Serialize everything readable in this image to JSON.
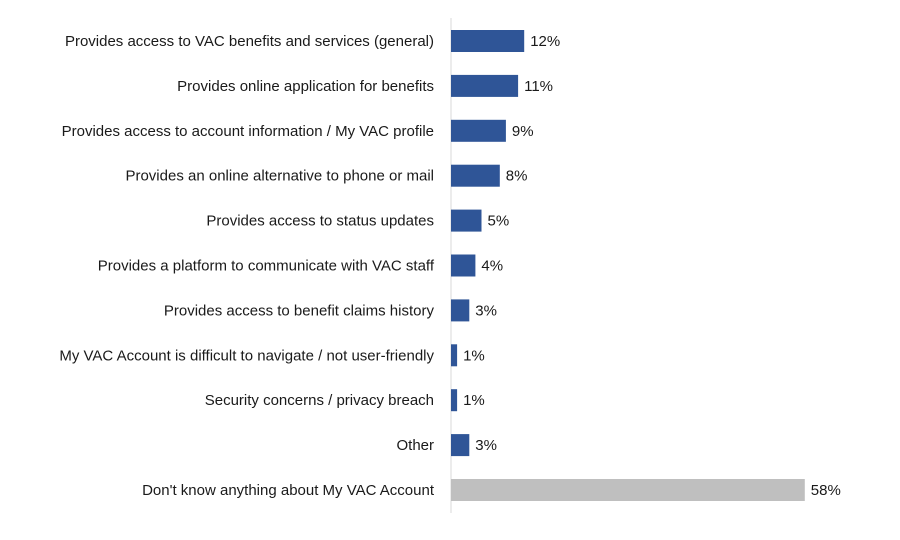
{
  "chart_data": {
    "type": "bar",
    "orientation": "horizontal",
    "categories": [
      "Provides access to VAC benefits and services (general)",
      "Provides online application for benefits",
      "Provides access to account information / My VAC profile",
      "Provides an online alternative to phone or mail",
      "Provides access to status updates",
      "Provides a platform to communicate with VAC staff",
      "Provides access to benefit claims history",
      "My VAC Account is difficult to navigate / not user-friendly",
      "Security concerns / privacy breach",
      "Other",
      "Don't know anything about My VAC Account"
    ],
    "values": [
      12,
      11,
      9,
      8,
      5,
      4,
      3,
      1,
      1,
      3,
      58
    ],
    "value_labels": [
      "12%",
      "11%",
      "9%",
      "8%",
      "5%",
      "4%",
      "3%",
      "1%",
      "1%",
      "3%",
      "58%"
    ],
    "colors": [
      "#2f5597",
      "#2f5597",
      "#2f5597",
      "#2f5597",
      "#2f5597",
      "#2f5597",
      "#2f5597",
      "#2f5597",
      "#2f5597",
      "#2f5597",
      "#bfbfbf"
    ]
  }
}
